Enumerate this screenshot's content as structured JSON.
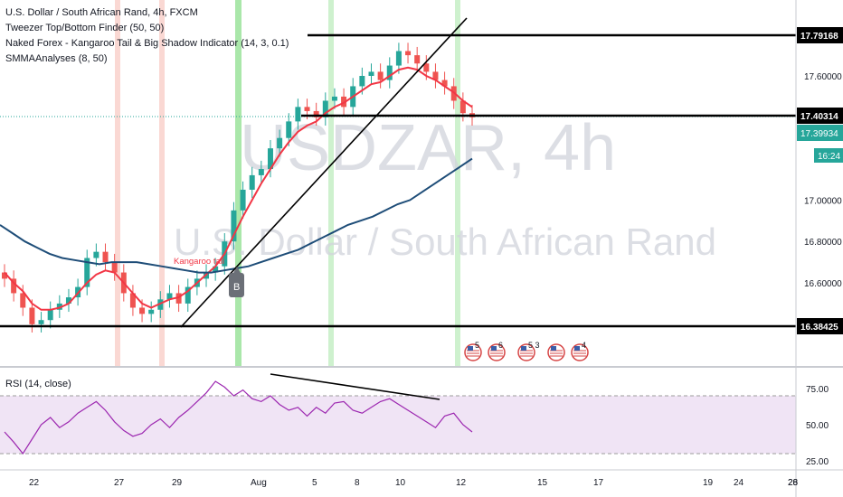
{
  "legend": {
    "symbol_line": "U.S. Dollar / South African Rand, 4h, FXCM",
    "indicator_1": "Tweezer Top/Bottom Finder (50, 50)",
    "indicator_2": "Naked Forex - Kangaroo Tail & Big Shadow Indicator (14, 3, 0.1)",
    "indicator_3": "SMMAAnalyses (8, 50)"
  },
  "watermark": {
    "ticker": "USDZAR, 4h",
    "name": "U.S. Dollar / South African Rand"
  },
  "rsi": {
    "label": "RSI (14, close)",
    "upper": 70,
    "lower": 30,
    "ticks": [
      "75.00",
      "50.00",
      "25.00"
    ]
  },
  "annotations": {
    "kangaroo_label": "Kangaroo tail",
    "signal_badge": "B",
    "event_icon_numbers": [
      "5",
      "6",
      "5 3",
      "",
      "4"
    ]
  },
  "colors": {
    "up": "#26a69a",
    "down": "#ef5350",
    "fast_ma": "#f23645",
    "slow_ma": "#1e4d78",
    "rsi_line": "#9c27b0",
    "rsi_band": "#f0e4f5",
    "green_highlight": "#9be39b",
    "red_highlight": "#f8c8c0",
    "current_price": "#26a69a"
  },
  "chart_data": {
    "type": "candlestick",
    "symbol": "USDZAR",
    "timeframe": "4h",
    "price_axis": {
      "ticks": [
        "17.60000",
        "17.00000",
        "16.80000",
        "16.60000"
      ],
      "ylim": [
        16.2,
        17.99
      ]
    },
    "horizontal_levels": [
      {
        "value": 17.79168,
        "label": "17.79168"
      },
      {
        "value": 17.40314,
        "label": "17.40314"
      },
      {
        "value": 16.38425,
        "label": "16.38425"
      }
    ],
    "current_price": {
      "value": 17.39934,
      "label": "17.39934",
      "countdown": "16:24"
    },
    "x_axis_labels": [
      "22",
      "27",
      "29",
      "Aug",
      "5",
      "8",
      "10",
      "12",
      "15",
      "17",
      "19",
      "24",
      "26",
      "28"
    ],
    "approx_closes": [
      16.62,
      16.55,
      16.48,
      16.4,
      16.42,
      16.47,
      16.5,
      16.53,
      16.58,
      16.72,
      16.75,
      16.7,
      16.65,
      16.55,
      16.48,
      16.45,
      16.47,
      16.52,
      16.55,
      16.5,
      16.58,
      16.62,
      16.65,
      16.68,
      16.8,
      16.95,
      17.05,
      17.12,
      17.15,
      17.25,
      17.3,
      17.38,
      17.45,
      17.43,
      17.4,
      17.48,
      17.5,
      17.45,
      17.55,
      17.6,
      17.62,
      17.58,
      17.65,
      17.72,
      17.7,
      17.66,
      17.62,
      17.58,
      17.55,
      17.48,
      17.42,
      17.4
    ],
    "fast_ma_approx": [
      16.65,
      16.6,
      16.56,
      16.5,
      16.47,
      16.47,
      16.48,
      16.5,
      16.55,
      16.6,
      16.64,
      16.66,
      16.65,
      16.6,
      16.55,
      16.5,
      16.48,
      16.5,
      16.52,
      16.53,
      16.56,
      16.6,
      16.64,
      16.68,
      16.74,
      16.83,
      16.92,
      17.0,
      17.08,
      17.15,
      17.22,
      17.28,
      17.33,
      17.36,
      17.38,
      17.42,
      17.45,
      17.47,
      17.5,
      17.53,
      17.56,
      17.57,
      17.6,
      17.63,
      17.64,
      17.63,
      17.6,
      17.58,
      17.55,
      17.52,
      17.48,
      17.45
    ],
    "slow_ma_approx": [
      16.88,
      16.84,
      16.8,
      16.77,
      16.74,
      16.72,
      16.71,
      16.7,
      16.69,
      16.7,
      16.7,
      16.7,
      16.69,
      16.68,
      16.67,
      16.66,
      16.65,
      16.65,
      16.66,
      16.67,
      16.68,
      16.7,
      16.72,
      16.74,
      16.76,
      16.79,
      16.82,
      16.85,
      16.88,
      16.9,
      16.92,
      16.95,
      16.98,
      17.0,
      17.04,
      17.08,
      17.12,
      17.16,
      17.2
    ]
  },
  "rsi_data": {
    "approx_values": [
      45,
      38,
      30,
      40,
      50,
      55,
      48,
      52,
      58,
      62,
      66,
      60,
      52,
      46,
      42,
      44,
      50,
      54,
      48,
      55,
      60,
      66,
      72,
      80,
      76,
      70,
      74,
      68,
      66,
      70,
      64,
      60,
      62,
      56,
      62,
      58,
      65,
      66,
      60,
      58,
      62,
      66,
      68,
      64,
      60,
      56,
      52,
      48,
      56,
      58,
      50,
      45
    ]
  }
}
